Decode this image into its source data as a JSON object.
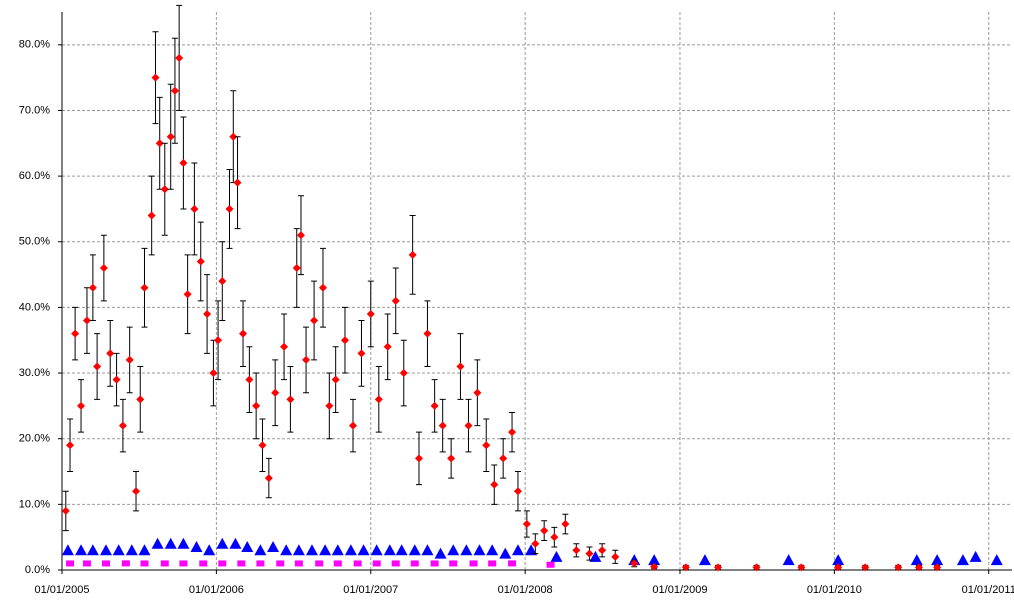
{
  "chart_data": {
    "type": "scatter",
    "xlim": [
      "2005-01-01",
      "2011-02-25"
    ],
    "xticks": [
      {
        "value": "2005-01-01",
        "label": "01/01/2005"
      },
      {
        "value": "2006-01-01",
        "label": "01/01/2006"
      },
      {
        "value": "2007-01-01",
        "label": "01/01/2007"
      },
      {
        "value": "2008-01-01",
        "label": "01/01/2008"
      },
      {
        "value": "2009-01-01",
        "label": "01/01/2009"
      },
      {
        "value": "2010-01-01",
        "label": "01/01/2010"
      },
      {
        "value": "2011-01-01",
        "label": "01/01/2011"
      }
    ],
    "ylim": [
      0,
      85
    ],
    "yticks": [
      {
        "value": 0,
        "label": "0.0%"
      },
      {
        "value": 10,
        "label": "10.0%"
      },
      {
        "value": 20,
        "label": "20.0%"
      },
      {
        "value": 30,
        "label": "30.0%"
      },
      {
        "value": 40,
        "label": "40.0%"
      },
      {
        "value": 50,
        "label": "50.0%"
      },
      {
        "value": 60,
        "label": "60.0%"
      },
      {
        "value": 70,
        "label": "70.0%"
      },
      {
        "value": 80,
        "label": "80.0%"
      }
    ],
    "grid": true,
    "series": [
      {
        "color": "#0000ff",
        "marker": "triangle",
        "x": [
          "2005-01-15",
          "2005-02-15",
          "2005-03-15",
          "2005-04-15",
          "2005-05-15",
          "2005-06-15",
          "2005-07-15",
          "2005-08-15",
          "2005-09-15",
          "2005-10-15",
          "2005-11-15",
          "2005-12-15",
          "2006-01-15",
          "2006-02-15",
          "2006-03-15",
          "2006-04-15",
          "2006-05-15",
          "2006-06-15",
          "2006-07-15",
          "2006-08-15",
          "2006-09-15",
          "2006-10-15",
          "2006-11-15",
          "2006-12-15",
          "2007-01-15",
          "2007-02-15",
          "2007-03-15",
          "2007-04-15",
          "2007-05-15",
          "2007-06-15",
          "2007-07-15",
          "2007-08-15",
          "2007-09-15",
          "2007-10-15",
          "2007-11-15",
          "2007-12-15",
          "2008-01-15",
          "2008-03-15",
          "2008-06-15",
          "2008-09-15",
          "2008-11-01",
          "2009-03-01",
          "2009-09-15",
          "2010-01-10",
          "2010-07-15",
          "2010-09-01",
          "2010-11-01",
          "2010-12-01",
          "2011-01-20"
        ],
        "values": [
          3,
          3,
          3,
          3,
          3,
          3,
          3,
          4,
          4,
          4,
          3.5,
          3,
          4,
          4,
          3.5,
          3,
          3.5,
          3,
          3,
          3,
          3,
          3,
          3,
          3,
          3,
          3,
          3,
          3,
          3,
          2.5,
          3,
          3,
          3,
          3,
          2.5,
          3,
          3,
          2,
          2,
          1.5,
          1.5,
          1.5,
          1.5,
          1.5,
          1.5,
          1.5,
          1.5,
          2,
          1.5
        ]
      },
      {
        "color": "#ff00ff",
        "marker": "square",
        "x": [
          "2005-01-20",
          "2005-03-01",
          "2005-04-15",
          "2005-06-01",
          "2005-07-15",
          "2005-09-01",
          "2005-10-15",
          "2005-12-01",
          "2006-01-15",
          "2006-03-01",
          "2006-04-15",
          "2006-06-01",
          "2006-07-15",
          "2006-09-01",
          "2006-10-15",
          "2006-12-01",
          "2007-01-15",
          "2007-03-01",
          "2007-04-15",
          "2007-06-01",
          "2007-07-15",
          "2007-09-01",
          "2007-10-15",
          "2007-12-01",
          "2008-03-01"
        ],
        "values": [
          1,
          1,
          1,
          1,
          1,
          1,
          1,
          1,
          1,
          1,
          1,
          1,
          1,
          1,
          1,
          1,
          1,
          1,
          1,
          1,
          1,
          1,
          1,
          1,
          0.8
        ]
      },
      {
        "color": "#ff0000",
        "marker": "diamond",
        "x": [
          "2005-01-10",
          "2005-01-20",
          "2005-02-01",
          "2005-02-15",
          "2005-03-01",
          "2005-03-15",
          "2005-03-25",
          "2005-04-10",
          "2005-04-25",
          "2005-05-10",
          "2005-05-25",
          "2005-06-10",
          "2005-06-25",
          "2005-07-05",
          "2005-07-15",
          "2005-08-01",
          "2005-08-10",
          "2005-08-20",
          "2005-09-01",
          "2005-09-15",
          "2005-09-25",
          "2005-10-05",
          "2005-10-15",
          "2005-10-25",
          "2005-11-10",
          "2005-11-25",
          "2005-12-10",
          "2005-12-25",
          "2006-01-05",
          "2006-01-15",
          "2006-02-01",
          "2006-02-10",
          "2006-02-20",
          "2006-03-05",
          "2006-03-20",
          "2006-04-05",
          "2006-04-20",
          "2006-05-05",
          "2006-05-20",
          "2006-06-10",
          "2006-06-25",
          "2006-07-10",
          "2006-07-20",
          "2006-08-01",
          "2006-08-20",
          "2006-09-10",
          "2006-09-25",
          "2006-10-10",
          "2006-11-01",
          "2006-11-20",
          "2006-12-10",
          "2007-01-01",
          "2007-01-20",
          "2007-02-10",
          "2007-03-01",
          "2007-03-20",
          "2007-04-10",
          "2007-04-25",
          "2007-05-15",
          "2007-06-01",
          "2007-06-20",
          "2007-07-10",
          "2007-08-01",
          "2007-08-20",
          "2007-09-10",
          "2007-10-01",
          "2007-10-20",
          "2007-11-10",
          "2007-12-01",
          "2007-12-15",
          "2008-01-05",
          "2008-01-25",
          "2008-02-15",
          "2008-03-10",
          "2008-04-05",
          "2008-05-01",
          "2008-06-01",
          "2008-07-01",
          "2008-08-01",
          "2008-09-15",
          "2008-11-01",
          "2009-01-15",
          "2009-04-01",
          "2009-07-01",
          "2009-10-15",
          "2010-01-10",
          "2010-03-15",
          "2010-06-01",
          "2010-07-20",
          "2010-09-01"
        ],
        "values": [
          9,
          19,
          36,
          25,
          38,
          43,
          31,
          46,
          33,
          29,
          22,
          32,
          12,
          26,
          43,
          54,
          75,
          65,
          58,
          66,
          73,
          78,
          62,
          42,
          55,
          47,
          39,
          30,
          35,
          44,
          55,
          66,
          59,
          36,
          29,
          25,
          19,
          14,
          27,
          34,
          26,
          46,
          51,
          32,
          38,
          43,
          25,
          29,
          35,
          22,
          33,
          39,
          26,
          34,
          41,
          30,
          48,
          17,
          36,
          25,
          22,
          17,
          31,
          22,
          27,
          19,
          13,
          17,
          21,
          12,
          7,
          4,
          6,
          5,
          7,
          3,
          2.5,
          3,
          2,
          1,
          0.5,
          0.4,
          0.4,
          0.4,
          0.4,
          0.4,
          0.4,
          0.4,
          0.4,
          0.4
        ],
        "errors": [
          3,
          4,
          4,
          4,
          5,
          5,
          5,
          5,
          5,
          4,
          4,
          5,
          3,
          5,
          6,
          6,
          7,
          7,
          7,
          8,
          8,
          8,
          7,
          6,
          7,
          6,
          6,
          5,
          6,
          6,
          6,
          7,
          7,
          5,
          5,
          5,
          4,
          3,
          5,
          5,
          5,
          6,
          6,
          5,
          6,
          6,
          5,
          5,
          5,
          4,
          5,
          5,
          5,
          5,
          5,
          5,
          6,
          4,
          5,
          4,
          4,
          3,
          5,
          4,
          5,
          4,
          3,
          3,
          3,
          3,
          2,
          1.5,
          1.5,
          1.5,
          1.5,
          1,
          1,
          1,
          1,
          0.5,
          0.3,
          0.3,
          0.3,
          0.3,
          0.3,
          0.3,
          0.3,
          0.3,
          0.3,
          0.3
        ]
      }
    ]
  }
}
